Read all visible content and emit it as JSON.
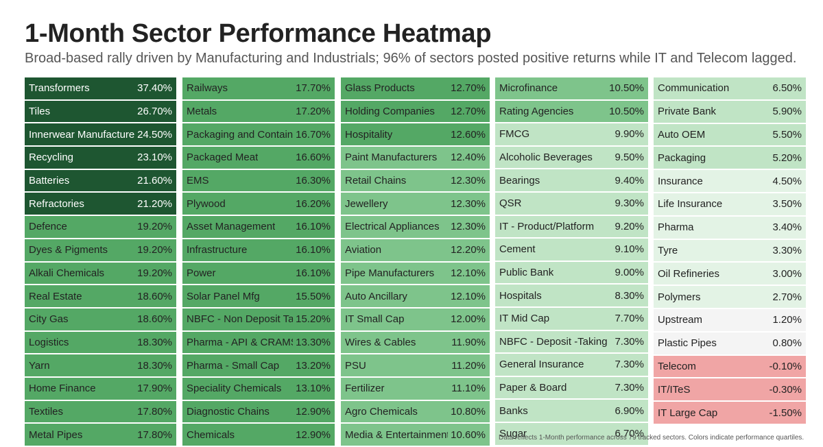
{
  "header": {
    "title": "1-Month Sector Performance Heatmap",
    "subtitle": "Broad-based rally driven by Manufacturing and Industrials; 96% of sectors posted positive returns while IT and Telecom lagged."
  },
  "footnote": "Data reflects 1-Month performance across 79 tracked sectors. Colors indicate performance quartiles.",
  "colors": {
    "darkest": "#1e5631",
    "dark": "#54a865",
    "medium": "#7ec48b",
    "light": "#c0e4c5",
    "lightest": "#e3f3e5",
    "neutral": "#f4f4f4",
    "negative": "#f0a5a5",
    "text_dark": "#ffffff",
    "text_light": "#222222"
  },
  "chart_data": {
    "type": "heatmap",
    "unit": "%",
    "title": "1-Month Sector Performance Heatmap",
    "columns": [
      [
        {
          "sector": "Transformers",
          "value": "37.40%",
          "v": 37.4
        },
        {
          "sector": "Tiles",
          "value": "26.70%",
          "v": 26.7
        },
        {
          "sector": "Innerwear Manufacturers",
          "value": "24.50%",
          "v": 24.5
        },
        {
          "sector": "Recycling",
          "value": "23.10%",
          "v": 23.1
        },
        {
          "sector": "Batteries",
          "value": "21.60%",
          "v": 21.6
        },
        {
          "sector": "Refractories",
          "value": "21.20%",
          "v": 21.2
        },
        {
          "sector": "Defence",
          "value": "19.20%",
          "v": 19.2
        },
        {
          "sector": "Dyes & Pigments",
          "value": "19.20%",
          "v": 19.2
        },
        {
          "sector": "Alkali Chemicals",
          "value": "19.20%",
          "v": 19.2
        },
        {
          "sector": "Real Estate",
          "value": "18.60%",
          "v": 18.6
        },
        {
          "sector": "City Gas",
          "value": "18.60%",
          "v": 18.6
        },
        {
          "sector": "Logistics",
          "value": "18.30%",
          "v": 18.3
        },
        {
          "sector": "Yarn",
          "value": "18.30%",
          "v": 18.3
        },
        {
          "sector": "Home Finance",
          "value": "17.90%",
          "v": 17.9
        },
        {
          "sector": "Textiles",
          "value": "17.80%",
          "v": 17.8
        },
        {
          "sector": "Metal Pipes",
          "value": "17.80%",
          "v": 17.8
        }
      ],
      [
        {
          "sector": "Railways",
          "value": "17.70%",
          "v": 17.7
        },
        {
          "sector": "Metals",
          "value": "17.20%",
          "v": 17.2
        },
        {
          "sector": "Packaging and Containers",
          "value": "16.70%",
          "v": 16.7
        },
        {
          "sector": "Packaged Meat",
          "value": "16.60%",
          "v": 16.6
        },
        {
          "sector": "EMS",
          "value": "16.30%",
          "v": 16.3
        },
        {
          "sector": "Plywood",
          "value": "16.20%",
          "v": 16.2
        },
        {
          "sector": "Asset Management",
          "value": "16.10%",
          "v": 16.1
        },
        {
          "sector": "Infrastructure",
          "value": "16.10%",
          "v": 16.1
        },
        {
          "sector": "Power",
          "value": "16.10%",
          "v": 16.1
        },
        {
          "sector": "Solar Panel Mfg",
          "value": "15.50%",
          "v": 15.5
        },
        {
          "sector": "NBFC - Non Deposit Taking",
          "value": "15.20%",
          "v": 15.2
        },
        {
          "sector": "Pharma - API & CRAMS",
          "value": "13.30%",
          "v": 13.3
        },
        {
          "sector": "Pharma - Small Cap",
          "value": "13.20%",
          "v": 13.2
        },
        {
          "sector": "Speciality Chemicals",
          "value": "13.10%",
          "v": 13.1
        },
        {
          "sector": "Diagnostic Chains",
          "value": "12.90%",
          "v": 12.9
        },
        {
          "sector": "Chemicals",
          "value": "12.90%",
          "v": 12.9
        }
      ],
      [
        {
          "sector": "Glass Products",
          "value": "12.70%",
          "v": 12.7
        },
        {
          "sector": "Holding Companies",
          "value": "12.70%",
          "v": 12.7
        },
        {
          "sector": "Hospitality",
          "value": "12.60%",
          "v": 12.6
        },
        {
          "sector": "Paint Manufacturers",
          "value": "12.40%",
          "v": 12.4
        },
        {
          "sector": "Retail Chains",
          "value": "12.30%",
          "v": 12.3
        },
        {
          "sector": "Jewellery",
          "value": "12.30%",
          "v": 12.3
        },
        {
          "sector": "Electrical Appliances",
          "value": "12.30%",
          "v": 12.3
        },
        {
          "sector": "Aviation",
          "value": "12.20%",
          "v": 12.2
        },
        {
          "sector": "Pipe Manufacturers",
          "value": "12.10%",
          "v": 12.1
        },
        {
          "sector": "Auto Ancillary",
          "value": "12.10%",
          "v": 12.1
        },
        {
          "sector": "IT Small Cap",
          "value": "12.00%",
          "v": 12.0
        },
        {
          "sector": "Wires & Cables",
          "value": "11.90%",
          "v": 11.9
        },
        {
          "sector": "PSU",
          "value": "11.20%",
          "v": 11.2
        },
        {
          "sector": "Fertilizer",
          "value": "11.10%",
          "v": 11.1
        },
        {
          "sector": "Agro Chemicals",
          "value": "10.80%",
          "v": 10.8
        },
        {
          "sector": "Media & Entertainment",
          "value": "10.60%",
          "v": 10.6
        }
      ],
      [
        {
          "sector": "Microfinance",
          "value": "10.50%",
          "v": 10.5
        },
        {
          "sector": "Rating Agencies",
          "value": "10.50%",
          "v": 10.5
        },
        {
          "sector": "FMCG",
          "value": "9.90%",
          "v": 9.9
        },
        {
          "sector": "Alcoholic Beverages",
          "value": "9.50%",
          "v": 9.5
        },
        {
          "sector": "Bearings",
          "value": "9.40%",
          "v": 9.4
        },
        {
          "sector": "QSR",
          "value": "9.30%",
          "v": 9.3
        },
        {
          "sector": "IT - Product/Platform",
          "value": "9.20%",
          "v": 9.2
        },
        {
          "sector": "Cement",
          "value": "9.10%",
          "v": 9.1
        },
        {
          "sector": "Public Bank",
          "value": "9.00%",
          "v": 9.0
        },
        {
          "sector": "Hospitals",
          "value": "8.30%",
          "v": 8.3
        },
        {
          "sector": "IT Mid Cap",
          "value": "7.70%",
          "v": 7.7
        },
        {
          "sector": "NBFC - Deposit -Taking",
          "value": "7.30%",
          "v": 7.3
        },
        {
          "sector": "General Insurance",
          "value": "7.30%",
          "v": 7.3
        },
        {
          "sector": "Paper & Board",
          "value": "7.30%",
          "v": 7.3
        },
        {
          "sector": "Banks",
          "value": "6.90%",
          "v": 6.9
        },
        {
          "sector": "Sugar",
          "value": "6.70%",
          "v": 6.7
        }
      ],
      [
        {
          "sector": "Communication",
          "value": "6.50%",
          "v": 6.5
        },
        {
          "sector": "Private Bank",
          "value": "5.90%",
          "v": 5.9
        },
        {
          "sector": "Auto OEM",
          "value": "5.50%",
          "v": 5.5
        },
        {
          "sector": "Packaging",
          "value": "5.20%",
          "v": 5.2
        },
        {
          "sector": "Insurance",
          "value": "4.50%",
          "v": 4.5
        },
        {
          "sector": "Life Insurance",
          "value": "3.50%",
          "v": 3.5
        },
        {
          "sector": "Pharma",
          "value": "3.40%",
          "v": 3.4
        },
        {
          "sector": "Tyre",
          "value": "3.30%",
          "v": 3.3
        },
        {
          "sector": "Oil Refineries",
          "value": "3.00%",
          "v": 3.0
        },
        {
          "sector": "Polymers",
          "value": "2.70%",
          "v": 2.7
        },
        {
          "sector": "Upstream",
          "value": "1.20%",
          "v": 1.2
        },
        {
          "sector": "Plastic Pipes",
          "value": "0.80%",
          "v": 0.8
        },
        {
          "sector": "Telecom",
          "value": "-0.10%",
          "v": -0.1
        },
        {
          "sector": "IT/ITeS",
          "value": "-0.30%",
          "v": -0.3
        },
        {
          "sector": "IT Large Cap",
          "value": "-1.50%",
          "v": -1.5
        }
      ]
    ]
  }
}
